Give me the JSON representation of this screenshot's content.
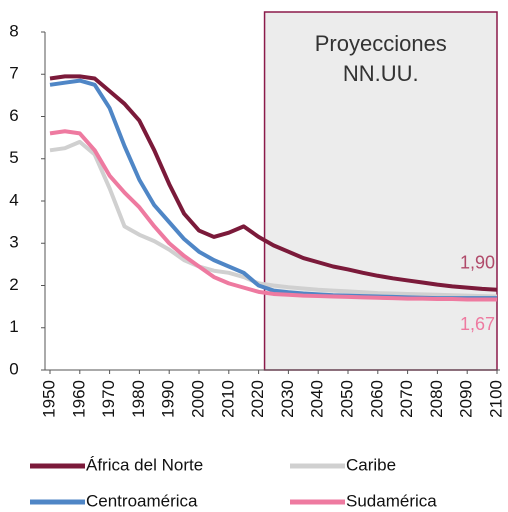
{
  "chart_data": {
    "type": "line",
    "x": [
      1950,
      1955,
      1960,
      1965,
      1970,
      1975,
      1980,
      1985,
      1990,
      1995,
      2000,
      2005,
      2010,
      2015,
      2020,
      2025,
      2030,
      2035,
      2040,
      2045,
      2050,
      2055,
      2060,
      2065,
      2070,
      2075,
      2080,
      2085,
      2090,
      2095,
      2100
    ],
    "series": [
      {
        "name": "África del Norte",
        "color": "#7b1a3a",
        "values": [
          6.9,
          6.95,
          6.95,
          6.9,
          6.6,
          6.3,
          5.9,
          5.2,
          4.4,
          3.7,
          3.3,
          3.15,
          3.25,
          3.4,
          3.15,
          2.95,
          2.8,
          2.65,
          2.55,
          2.45,
          2.38,
          2.3,
          2.23,
          2.17,
          2.12,
          2.07,
          2.02,
          1.98,
          1.95,
          1.92,
          1.9
        ]
      },
      {
        "name": "Caribe",
        "color": "#d0d0d0",
        "values": [
          5.2,
          5.25,
          5.4,
          5.1,
          4.3,
          3.4,
          3.2,
          3.05,
          2.85,
          2.6,
          2.45,
          2.35,
          2.3,
          2.2,
          2.05,
          2.0,
          1.96,
          1.93,
          1.9,
          1.88,
          1.86,
          1.84,
          1.82,
          1.81,
          1.8,
          1.79,
          1.78,
          1.77,
          1.76,
          1.75,
          1.74
        ]
      },
      {
        "name": "Centroamérica",
        "color": "#4f86c6",
        "values": [
          6.75,
          6.8,
          6.85,
          6.75,
          6.2,
          5.3,
          4.5,
          3.9,
          3.5,
          3.1,
          2.8,
          2.6,
          2.45,
          2.3,
          2.0,
          1.88,
          1.84,
          1.81,
          1.79,
          1.77,
          1.76,
          1.75,
          1.74,
          1.73,
          1.72,
          1.71,
          1.7,
          1.7,
          1.7,
          1.7,
          1.7
        ]
      },
      {
        "name": "Sudamérica",
        "color": "#ee7aa0",
        "values": [
          5.6,
          5.65,
          5.6,
          5.2,
          4.6,
          4.2,
          3.85,
          3.4,
          3.0,
          2.7,
          2.45,
          2.2,
          2.05,
          1.95,
          1.85,
          1.8,
          1.78,
          1.76,
          1.75,
          1.74,
          1.73,
          1.72,
          1.71,
          1.7,
          1.69,
          1.69,
          1.68,
          1.68,
          1.67,
          1.67,
          1.67
        ]
      }
    ],
    "xlim": [
      1950,
      2100
    ],
    "xticks": [
      1950,
      1960,
      1970,
      1980,
      1990,
      2000,
      2010,
      2020,
      2030,
      2040,
      2050,
      2060,
      2070,
      2080,
      2090,
      2100
    ],
    "ylim": [
      0,
      8
    ],
    "yticks": [
      0,
      1,
      2,
      3,
      4,
      5,
      6,
      7,
      8
    ],
    "projection_start": 2022,
    "projection_label": [
      "Proyecciones",
      "NN.UU."
    ],
    "annotations": [
      {
        "text": "1,90",
        "x": 2100,
        "y": 1.9,
        "color": "#b04a6a"
      },
      {
        "text": "1,67",
        "x": 2100,
        "y": 1.67,
        "color": "#ee7aa0"
      }
    ]
  }
}
